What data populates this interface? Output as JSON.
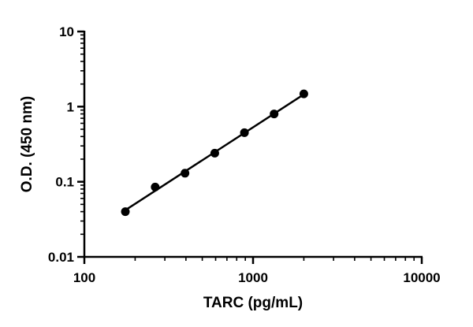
{
  "chart_data": {
    "type": "scatter",
    "title": "",
    "xlabel": "TARC (pg/mL)",
    "ylabel": "O.D. (450 nm)",
    "xscale": "log",
    "yscale": "log",
    "xlim": [
      100,
      10000
    ],
    "ylim": [
      0.01,
      10
    ],
    "xticks": [
      {
        "value": 100,
        "label": "100"
      },
      {
        "value": 1000,
        "label": "1000"
      },
      {
        "value": 10000,
        "label": "10000"
      }
    ],
    "yticks": [
      {
        "value": 10,
        "label": "10"
      },
      {
        "value": 1,
        "label": "1"
      },
      {
        "value": 0.1,
        "label": "0.1"
      },
      {
        "value": 0.01,
        "label": "0.01"
      }
    ],
    "minor_ticks": true,
    "grid": false,
    "legend": "none",
    "series": [
      {
        "x": [
          175,
          263,
          395,
          593,
          889,
          1333,
          2000
        ],
        "y": [
          0.04,
          0.085,
          0.13,
          0.24,
          0.45,
          0.8,
          1.48
        ],
        "fit_line": true,
        "color": "#000000"
      }
    ]
  }
}
